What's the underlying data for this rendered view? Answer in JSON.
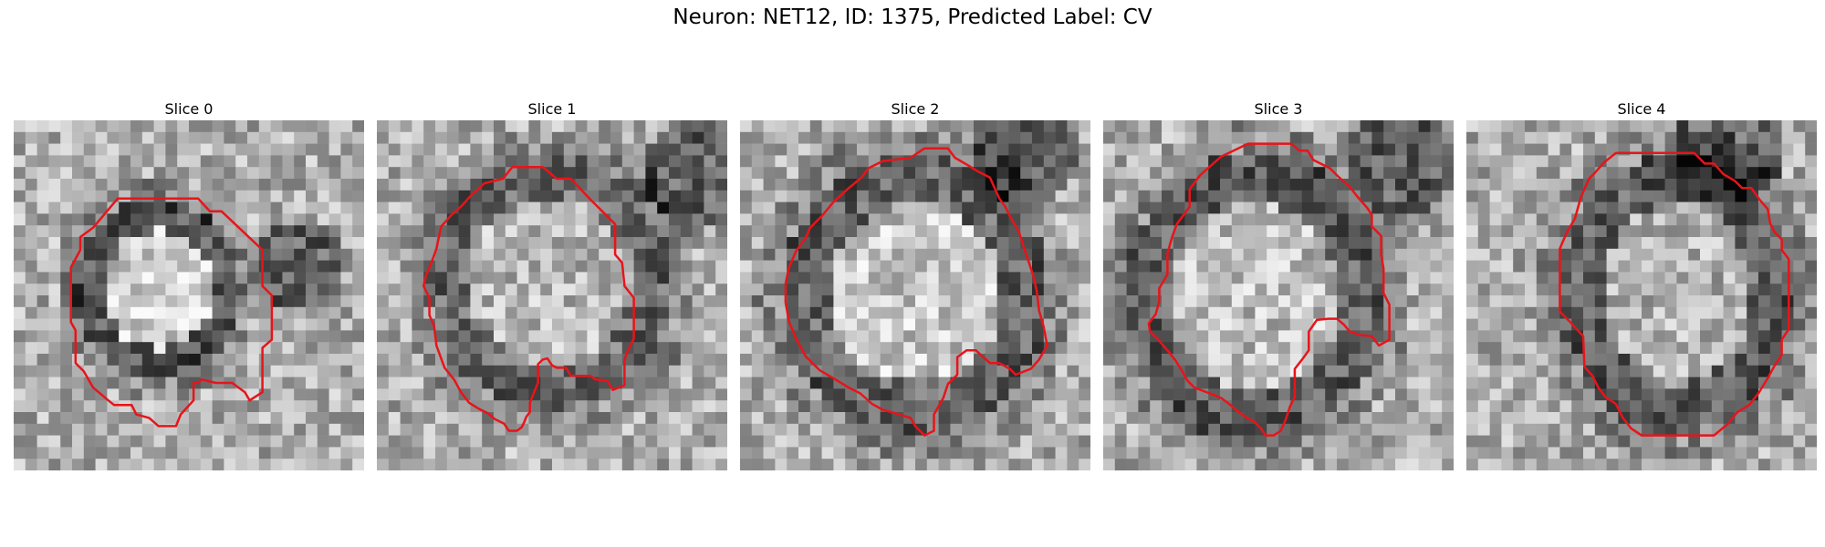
{
  "figure": {
    "title": "Neuron: NET12, ID: 1375, Predicted Label: CV"
  },
  "slices": [
    {
      "title": "Slice 0",
      "contour_color": "#e8141a"
    },
    {
      "title": "Slice 1",
      "contour_color": "#e8141a"
    },
    {
      "title": "Slice 2",
      "contour_color": "#e8141a"
    },
    {
      "title": "Slice 3",
      "contour_color": "#e8141a"
    },
    {
      "title": "Slice 4",
      "contour_color": "#e8141a"
    }
  ],
  "image": {
    "colormap": "gray",
    "grid_size": 30
  }
}
